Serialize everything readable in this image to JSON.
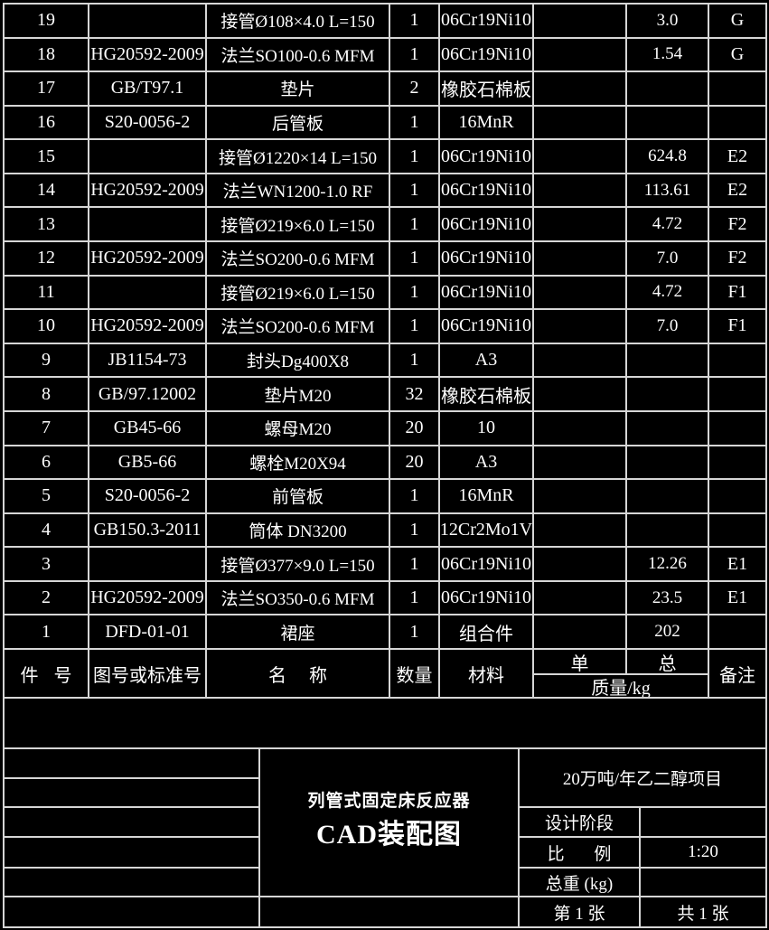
{
  "colors": {
    "background": "#000000",
    "line": "#d6d6d6",
    "text": "#ffffff"
  },
  "bom": {
    "headers": {
      "item": "件 号",
      "std": "图号或标准号",
      "name": "名 称",
      "qty": "数量",
      "material": "材料",
      "unit": "单",
      "total": "总",
      "mass": "质量/kg",
      "remark": "备注"
    },
    "rows": [
      {
        "item": "19",
        "std": "",
        "name": "接管Ø108×4.0 L=150",
        "qty": "1",
        "material": "06Cr19Ni10",
        "unit_mass": "",
        "total_mass": "3.0",
        "remark": "G"
      },
      {
        "item": "18",
        "std": "HG20592-2009",
        "name": "法兰SO100-0.6 MFM",
        "qty": "1",
        "material": "06Cr19Ni10",
        "unit_mass": "",
        "total_mass": "1.54",
        "remark": "G"
      },
      {
        "item": "17",
        "std": "GB/T97.1",
        "name": "垫片",
        "qty": "2",
        "material": "橡胶石棉板",
        "unit_mass": "",
        "total_mass": "",
        "remark": ""
      },
      {
        "item": "16",
        "std": "S20-0056-2",
        "name": "后管板",
        "qty": "1",
        "material": "16MnR",
        "unit_mass": "",
        "total_mass": "",
        "remark": ""
      },
      {
        "item": "15",
        "std": "",
        "name": "接管Ø1220×14 L=150",
        "qty": "1",
        "material": "06Cr19Ni10",
        "unit_mass": "",
        "total_mass": "624.8",
        "remark": "E2"
      },
      {
        "item": "14",
        "std": "HG20592-2009",
        "name": "法兰WN1200-1.0 RF",
        "qty": "1",
        "material": "06Cr19Ni10",
        "unit_mass": "",
        "total_mass": "113.61",
        "remark": "E2"
      },
      {
        "item": "13",
        "std": "",
        "name": "接管Ø219×6.0 L=150",
        "qty": "1",
        "material": "06Cr19Ni10",
        "unit_mass": "",
        "total_mass": "4.72",
        "remark": "F2"
      },
      {
        "item": "12",
        "std": "HG20592-2009",
        "name": "法兰SO200-0.6 MFM",
        "qty": "1",
        "material": "06Cr19Ni10",
        "unit_mass": "",
        "total_mass": "7.0",
        "remark": "F2"
      },
      {
        "item": "11",
        "std": "",
        "name": "接管Ø219×6.0 L=150",
        "qty": "1",
        "material": "06Cr19Ni10",
        "unit_mass": "",
        "total_mass": "4.72",
        "remark": "F1"
      },
      {
        "item": "10",
        "std": "HG20592-2009",
        "name": "法兰SO200-0.6 MFM",
        "qty": "1",
        "material": "06Cr19Ni10",
        "unit_mass": "",
        "total_mass": "7.0",
        "remark": "F1"
      },
      {
        "item": "9",
        "std": "JB1154-73",
        "name": "封头Dg400X8",
        "qty": "1",
        "material": "A3",
        "unit_mass": "",
        "total_mass": "",
        "remark": ""
      },
      {
        "item": "8",
        "std": "GB/97.12002",
        "name": "垫片M20",
        "qty": "32",
        "material": "橡胶石棉板",
        "unit_mass": "",
        "total_mass": "",
        "remark": ""
      },
      {
        "item": "7",
        "std": "GB45-66",
        "name": "螺母M20",
        "qty": "20",
        "material": "10",
        "unit_mass": "",
        "total_mass": "",
        "remark": ""
      },
      {
        "item": "6",
        "std": "GB5-66",
        "name": "螺栓M20X94",
        "qty": "20",
        "material": "A3",
        "unit_mass": "",
        "total_mass": "",
        "remark": ""
      },
      {
        "item": "5",
        "std": "S20-0056-2",
        "name": "前管板",
        "qty": "1",
        "material": "16MnR",
        "unit_mass": "",
        "total_mass": "",
        "remark": ""
      },
      {
        "item": "4",
        "std": "GB150.3-2011",
        "name": "筒体 DN3200",
        "qty": "1",
        "material": "12Cr2Mo1V",
        "unit_mass": "",
        "total_mass": "",
        "remark": ""
      },
      {
        "item": "3",
        "std": "",
        "name": "接管Ø377×9.0 L=150",
        "qty": "1",
        "material": "06Cr19Ni10",
        "unit_mass": "",
        "total_mass": "12.26",
        "remark": "E1"
      },
      {
        "item": "2",
        "std": "HG20592-2009",
        "name": "法兰SO350-0.6 MFM",
        "qty": "1",
        "material": "06Cr19Ni10",
        "unit_mass": "",
        "total_mass": "23.5",
        "remark": "E1"
      },
      {
        "item": "1",
        "std": "DFD-01-01",
        "name": "裙座",
        "qty": "1",
        "material": "组合件",
        "unit_mass": "",
        "total_mass": "202",
        "remark": ""
      }
    ]
  },
  "title_block": {
    "title_line1": "列管式固定床反应器",
    "title_line2": "CAD装配图",
    "project": "20万吨/年乙二醇项目",
    "design_stage_label": "设计阶段",
    "design_stage_value": "",
    "scale_label": "比 例",
    "scale_value": "1:20",
    "total_weight_label": "总重  (kg)",
    "total_weight_value": "",
    "sheet_number": "第 1 张",
    "sheet_total": "共 1 张"
  }
}
